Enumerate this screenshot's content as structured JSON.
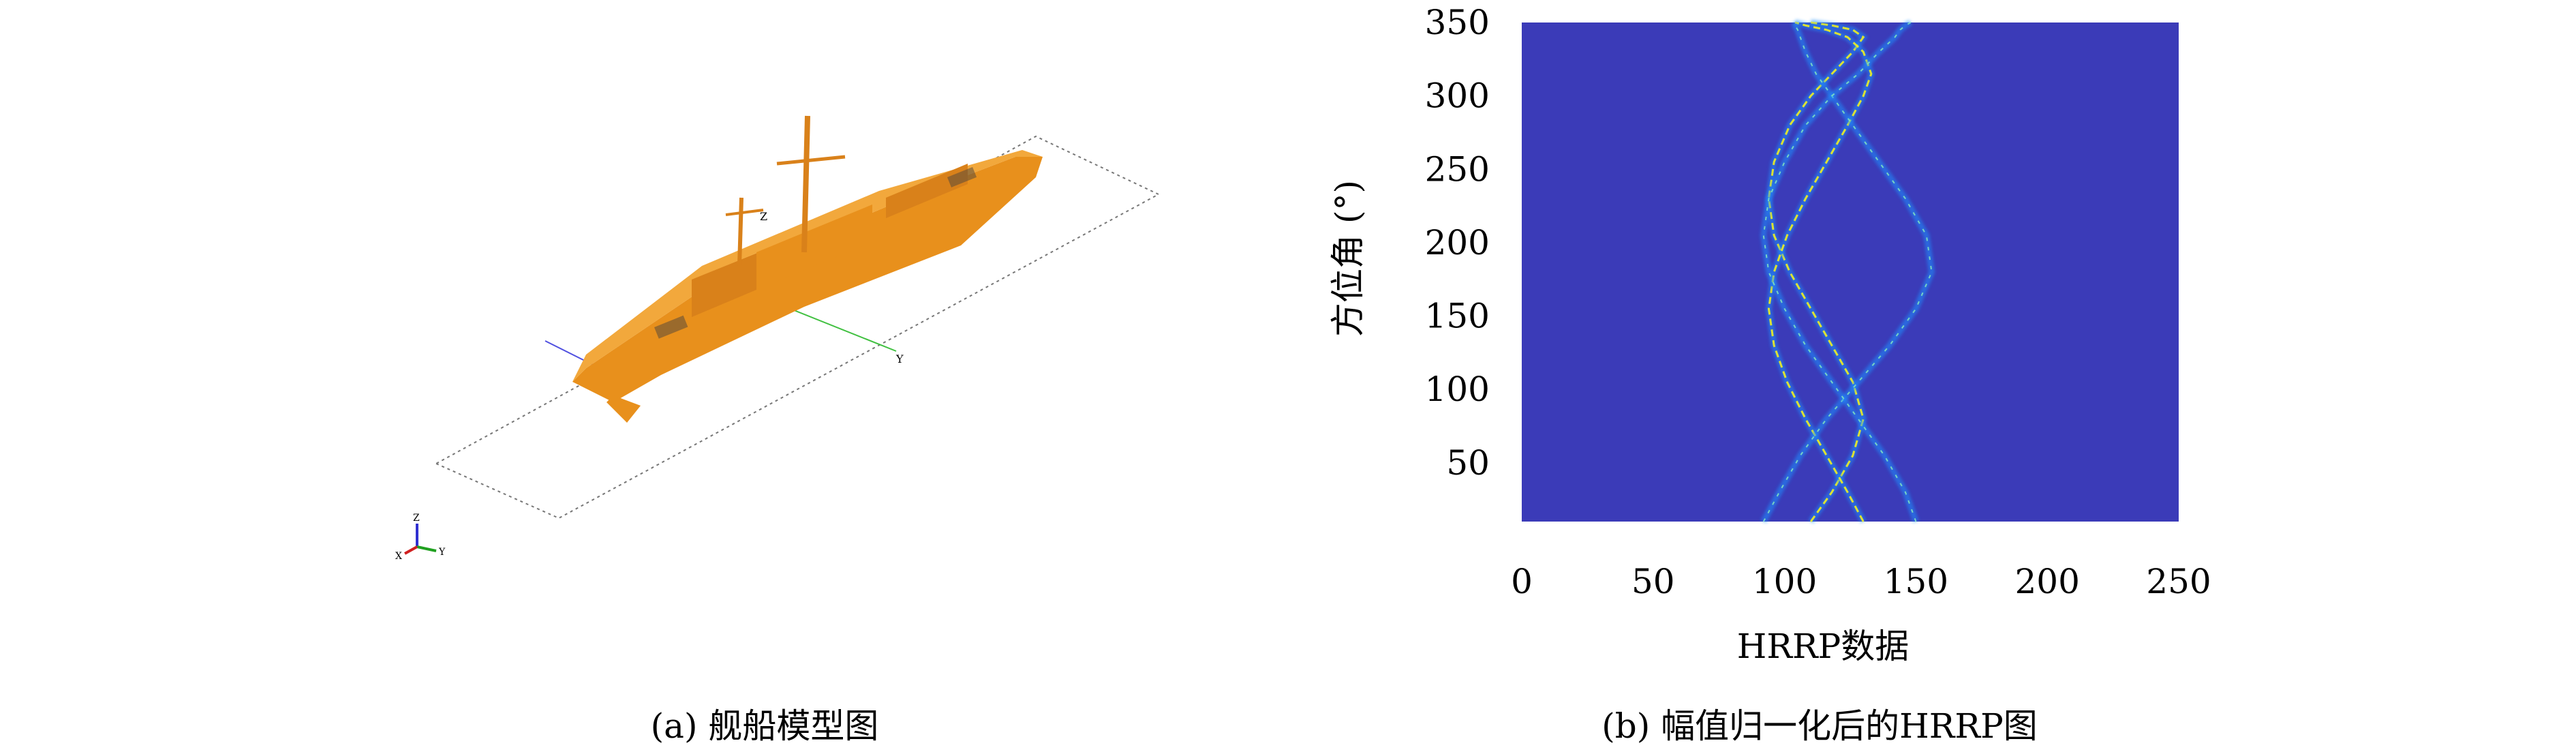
{
  "panel_a": {
    "caption": "(a) 舰船模型图",
    "model_color": "#E8901C",
    "labels": {
      "axis_y": "Y",
      "axis_z": "Z",
      "triad_x": "X",
      "triad_y": "Y",
      "triad_z": "Z"
    }
  },
  "panel_b": {
    "caption": "(b) 幅值归一化后的HRRP图"
  },
  "chart_data": {
    "type": "heatmap",
    "xlabel": "HRRP数据",
    "ylabel": "方位角 (°)",
    "xlim": [
      0,
      250
    ],
    "ylim": [
      10,
      350
    ],
    "x_ticks": [
      0,
      50,
      100,
      150,
      200,
      250
    ],
    "y_ticks": [
      50,
      100,
      150,
      200,
      250,
      300,
      350
    ],
    "colormap": {
      "low": "#3B3BB8",
      "mid": "#1E90FF",
      "high": "#F0F020"
    },
    "curves": [
      {
        "name": "",
        "x": [
          110,
          118,
          126,
          130,
          126,
          118,
          110,
          102,
          96,
          94,
          96,
          102,
          110,
          118,
          126,
          130,
          126,
          118,
          110
        ],
        "y": [
          10,
          30,
          55,
          80,
          105,
          130,
          155,
          180,
          205,
          230,
          255,
          280,
          300,
          315,
          330,
          340,
          345,
          348,
          350
        ]
      },
      {
        "name": "",
        "x": [
          130,
          124,
          116,
          108,
          101,
          96,
          94,
          96,
          101,
          108,
          116,
          124,
          130,
          133,
          130,
          124,
          116,
          108,
          104
        ],
        "y": [
          10,
          30,
          55,
          80,
          105,
          130,
          155,
          180,
          205,
          230,
          255,
          280,
          300,
          315,
          330,
          340,
          345,
          348,
          350
        ]
      },
      {
        "name": "",
        "x": [
          92,
          98,
          106,
          116,
          128,
          140,
          150,
          156,
          154,
          146,
          136,
          126,
          118,
          112,
          108,
          106,
          105,
          104,
          104
        ],
        "y": [
          10,
          30,
          55,
          80,
          105,
          130,
          155,
          180,
          205,
          230,
          255,
          280,
          300,
          315,
          330,
          340,
          345,
          348,
          350
        ]
      },
      {
        "name": "",
        "x": [
          150,
          146,
          138,
          128,
          118,
          108,
          100,
          94,
          92,
          94,
          100,
          108,
          118,
          128,
          136,
          142,
          144,
          146,
          148
        ],
        "y": [
          10,
          30,
          55,
          80,
          105,
          130,
          155,
          180,
          205,
          230,
          255,
          280,
          300,
          315,
          330,
          340,
          345,
          348,
          350
        ]
      }
    ]
  }
}
